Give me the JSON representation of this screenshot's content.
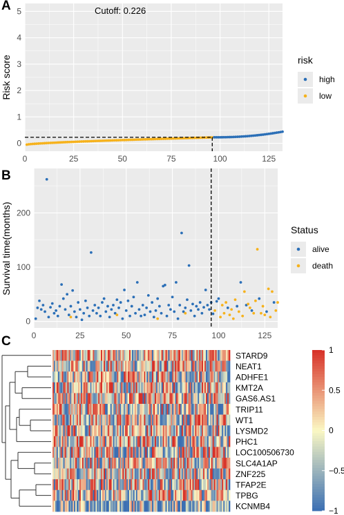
{
  "panels": {
    "a_letter": "A",
    "b_letter": "B",
    "c_letter": "C"
  },
  "colors": {
    "high": "#2b6fb7",
    "low": "#f6b21c",
    "alive": "#2b6fb7",
    "death": "#f6b21c",
    "panel_bg": "#ebebeb",
    "grid": "#ffffff",
    "heat_low": "#3b6fb3",
    "heat_mid": "#fbf8c4",
    "heat_high": "#d73027"
  },
  "chart_data": [
    {
      "type": "scatter",
      "id": "risk_score",
      "annotation": "Cutoff: 0.226",
      "ylabel": "Risk score",
      "xlabel": "",
      "xlim": [
        0,
        132
      ],
      "ylim": [
        -0.3,
        5.3
      ],
      "x_ticks": [
        0,
        25,
        50,
        75,
        100,
        125
      ],
      "y_ticks": [
        0,
        1,
        2,
        3,
        4,
        5
      ],
      "cutoff": 0.226,
      "cutoff_index": 96,
      "n": 132,
      "legend_title": "risk",
      "legend_position": "right",
      "series": [
        {
          "name": "high",
          "x_range": [
            97,
            132
          ],
          "y_start": 0.226,
          "y_end": 0.44
        },
        {
          "name": "low",
          "x_range": [
            1,
            96
          ],
          "y_start": -0.05,
          "y_end": 0.222
        }
      ]
    },
    {
      "type": "scatter",
      "id": "survival",
      "ylabel": "Survival time(months)",
      "xlabel": "",
      "xlim": [
        0,
        132
      ],
      "ylim": [
        -12,
        282
      ],
      "x_ticks": [
        0,
        25,
        50,
        75,
        100,
        125
      ],
      "y_ticks": [
        0,
        100,
        200
      ],
      "cutoff_index": 96,
      "legend_title": "Status",
      "legend_position": "right",
      "series": [
        {
          "name": "alive",
          "points": [
            [
              1,
              5
            ],
            [
              2,
              25
            ],
            [
              3,
              38
            ],
            [
              4,
              22
            ],
            [
              5,
              30
            ],
            [
              6,
              18
            ],
            [
              7,
              262
            ],
            [
              8,
              8
            ],
            [
              9,
              26
            ],
            [
              10,
              33
            ],
            [
              11,
              15
            ],
            [
              12,
              20
            ],
            [
              13,
              10
            ],
            [
              14,
              28
            ],
            [
              15,
              68
            ],
            [
              16,
              42
            ],
            [
              17,
              22
            ],
            [
              18,
              50
            ],
            [
              19,
              12
            ],
            [
              20,
              28
            ],
            [
              21,
              57
            ],
            [
              22,
              18
            ],
            [
              23,
              8
            ],
            [
              24,
              35
            ],
            [
              25,
              22
            ],
            [
              26,
              3
            ],
            [
              27,
              15
            ],
            [
              28,
              38
            ],
            [
              29,
              25
            ],
            [
              30,
              10
            ],
            [
              31,
              127
            ],
            [
              32,
              20
            ],
            [
              33,
              30
            ],
            [
              34,
              15
            ],
            [
              35,
              25
            ],
            [
              36,
              10
            ],
            [
              37,
              35
            ],
            [
              38,
              42
            ],
            [
              39,
              18
            ],
            [
              40,
              28
            ],
            [
              41,
              8
            ],
            [
              42,
              22
            ],
            [
              43,
              30
            ],
            [
              44,
              15
            ],
            [
              45,
              40
            ],
            [
              46,
              25
            ],
            [
              47,
              35
            ],
            [
              48,
              5
            ],
            [
              49,
              58
            ],
            [
              50,
              20
            ],
            [
              51,
              38
            ],
            [
              52,
              10
            ],
            [
              53,
              28
            ],
            [
              54,
              45
            ],
            [
              55,
              15
            ],
            [
              56,
              72
            ],
            [
              57,
              22
            ],
            [
              58,
              10
            ],
            [
              59,
              30
            ],
            [
              60,
              12
            ],
            [
              61,
              25
            ],
            [
              62,
              48
            ],
            [
              63,
              18
            ],
            [
              64,
              35
            ],
            [
              65,
              8
            ],
            [
              66,
              20
            ],
            [
              67,
              42
            ],
            [
              68,
              28
            ],
            [
              69,
              15
            ],
            [
              70,
              65
            ],
            [
              71,
              67
            ],
            [
              72,
              10
            ],
            [
              73,
              30
            ],
            [
              74,
              22
            ],
            [
              75,
              45
            ],
            [
              76,
              18
            ],
            [
              77,
              72
            ],
            [
              78,
              5
            ],
            [
              79,
              30
            ],
            [
              80,
              163
            ],
            [
              81,
              18
            ],
            [
              82,
              25
            ],
            [
              83,
              40
            ],
            [
              84,
              103
            ],
            [
              85,
              20
            ],
            [
              86,
              32
            ],
            [
              87,
              10
            ],
            [
              88,
              28
            ],
            [
              89,
              22
            ],
            [
              90,
              35
            ],
            [
              91,
              15
            ],
            [
              92,
              26
            ],
            [
              93,
              58
            ],
            [
              94,
              30
            ],
            [
              95,
              22
            ],
            [
              96,
              35
            ],
            [
              97,
              14
            ],
            [
              99,
              37
            ],
            [
              100,
              42
            ],
            [
              105,
              25
            ],
            [
              110,
              28
            ],
            [
              112,
              72
            ],
            [
              115,
              30
            ],
            [
              118,
              20
            ],
            [
              122,
              42
            ],
            [
              126,
              18
            ],
            [
              130,
              35
            ]
          ]
        },
        {
          "name": "death",
          "points": [
            [
              20,
              8
            ],
            [
              45,
              12
            ],
            [
              67,
              5
            ],
            [
              82,
              15
            ],
            [
              98,
              20
            ],
            [
              101,
              8
            ],
            [
              102,
              30
            ],
            [
              103,
              15
            ],
            [
              104,
              35
            ],
            [
              106,
              12
            ],
            [
              107,
              22
            ],
            [
              108,
              5
            ],
            [
              109,
              40
            ],
            [
              111,
              18
            ],
            [
              113,
              10
            ],
            [
              114,
              55
            ],
            [
              116,
              32
            ],
            [
              117,
              25
            ],
            [
              119,
              15
            ],
            [
              120,
              38
            ],
            [
              121,
              133
            ],
            [
              123,
              15
            ],
            [
              124,
              28
            ],
            [
              125,
              12
            ],
            [
              127,
              60
            ],
            [
              128,
              8
            ],
            [
              129,
              55
            ],
            [
              131,
              20
            ],
            [
              132,
              35
            ]
          ]
        }
      ]
    },
    {
      "type": "heatmap",
      "id": "expression",
      "rows": [
        "STARD9",
        "NEAT1",
        "ADHFE1",
        "KMT2A",
        "GAS6.AS1",
        "TRIP11",
        "WT1",
        "LYSMD2",
        "PHC1",
        "LOC100506730",
        "SLC4A1AP",
        "ZNF225",
        "TFAP2E",
        "TPBG",
        "KCNMB4"
      ],
      "columns": 132,
      "color_range": [
        -1,
        1
      ],
      "colorbar_ticks": [
        "1",
        "0.5",
        "0",
        "−0.5",
        "−1"
      ]
    }
  ]
}
